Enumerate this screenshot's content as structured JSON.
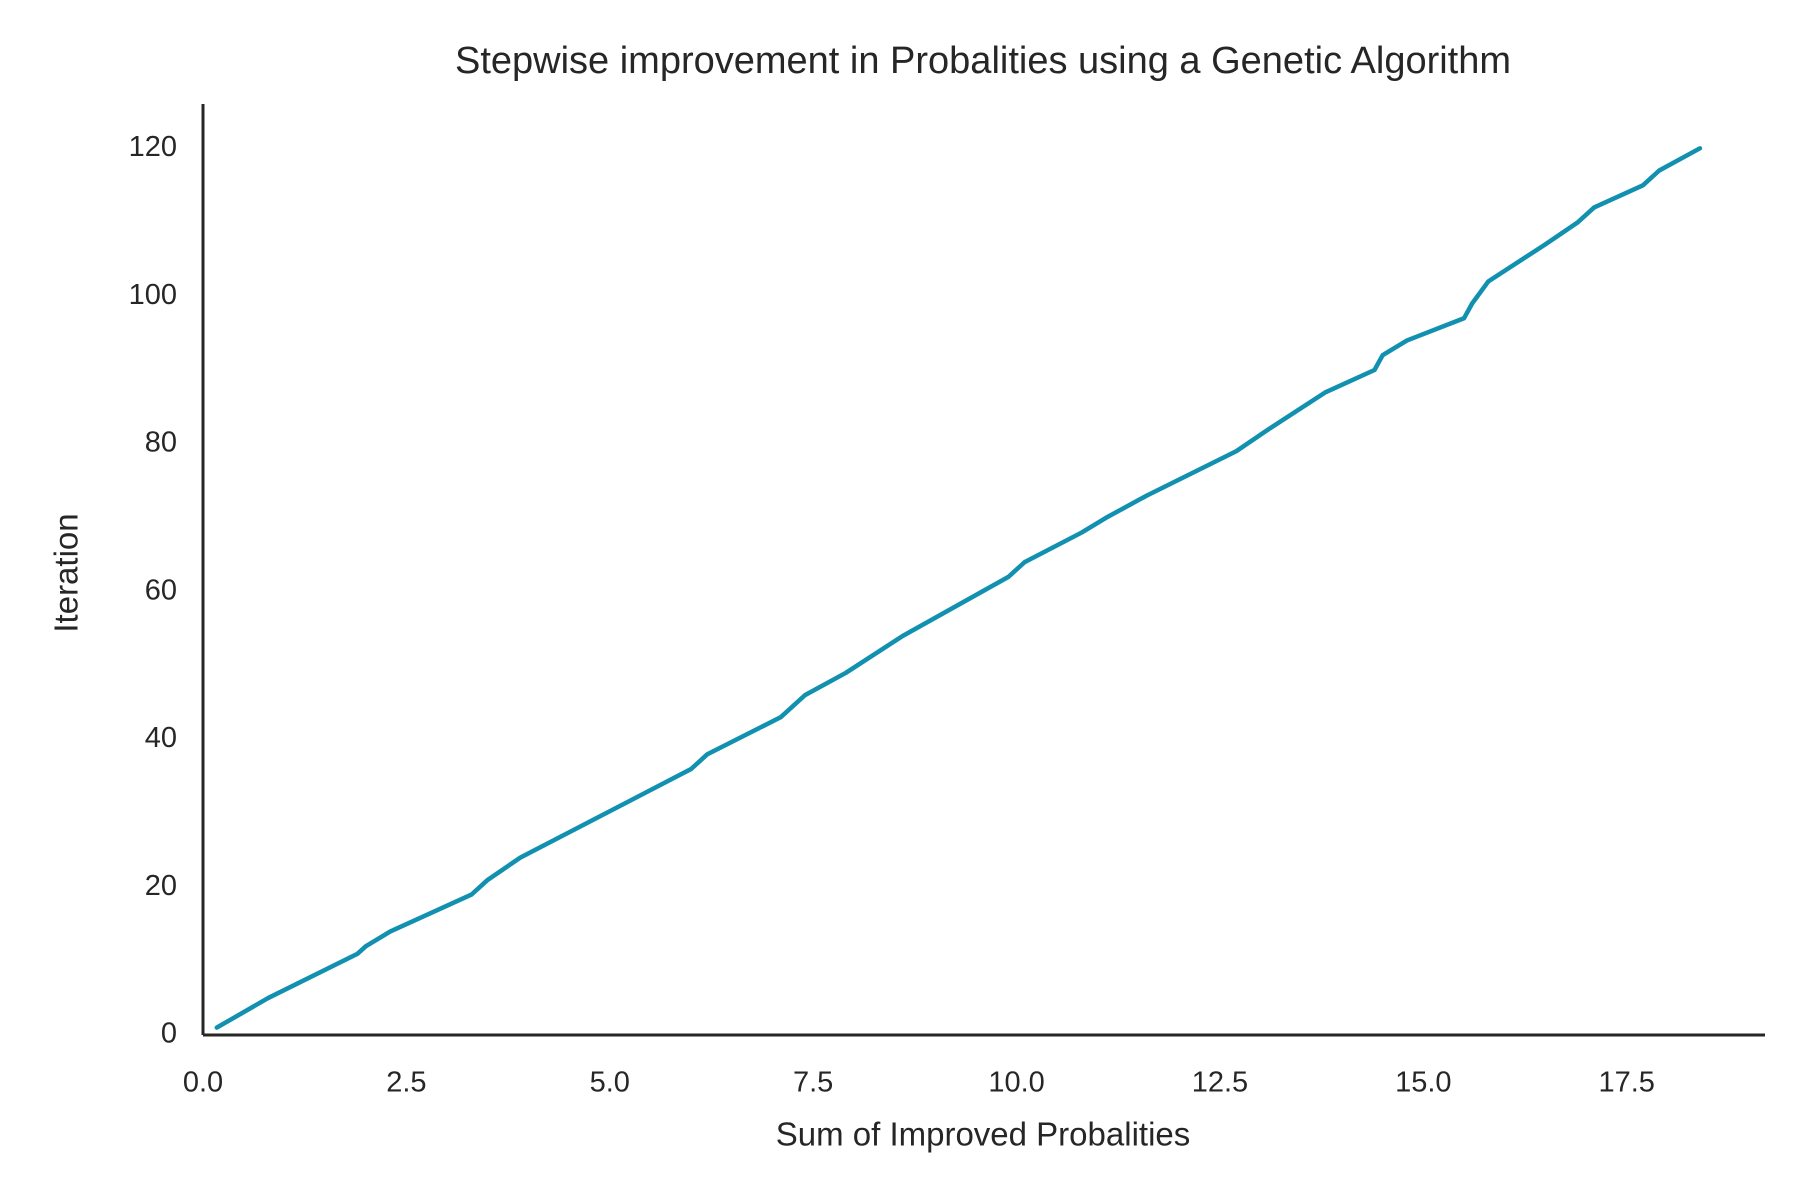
{
  "chart_data": {
    "type": "line",
    "title": "Stepwise improvement in Probalities using a Genetic Algorithm",
    "x_label": "Sum of Improved Probalities",
    "y_label": "Iteration",
    "series": [
      {
        "color": "#1190b0",
        "x": [
          0.17,
          0.8,
          1.9,
          2.0,
          2.3,
          3.3,
          3.5,
          3.9,
          6.0,
          6.2,
          7.1,
          7.4,
          7.9,
          8.6,
          9.9,
          10.1,
          10.8,
          11.1,
          11.6,
          12.7,
          13.1,
          13.8,
          14.4,
          14.5,
          14.8,
          15.5,
          15.6,
          15.8,
          16.5,
          16.9,
          17.1,
          17.7,
          17.9,
          18.4
        ],
        "values": [
          1,
          5,
          11,
          12,
          14,
          19,
          21,
          24,
          36,
          38,
          43,
          46,
          49,
          54,
          62,
          64,
          68,
          70,
          73,
          79,
          82,
          87,
          90,
          92,
          94,
          97,
          99,
          102,
          107,
          110,
          112,
          115,
          117,
          120
        ]
      }
    ],
    "xlim": [
      0,
      19.2
    ],
    "ylim": [
      0,
      126
    ],
    "xticks": [
      {
        "value": 0,
        "label": "0.0"
      },
      2.5,
      {
        "value": 5,
        "label": "5.0"
      },
      7.5,
      {
        "value": 10,
        "label": "10.0"
      },
      12.5,
      {
        "value": 15,
        "label": "15.0"
      },
      17.5
    ],
    "yticks": [
      0,
      20,
      40,
      60,
      80,
      100,
      120
    ],
    "grid": false
  }
}
